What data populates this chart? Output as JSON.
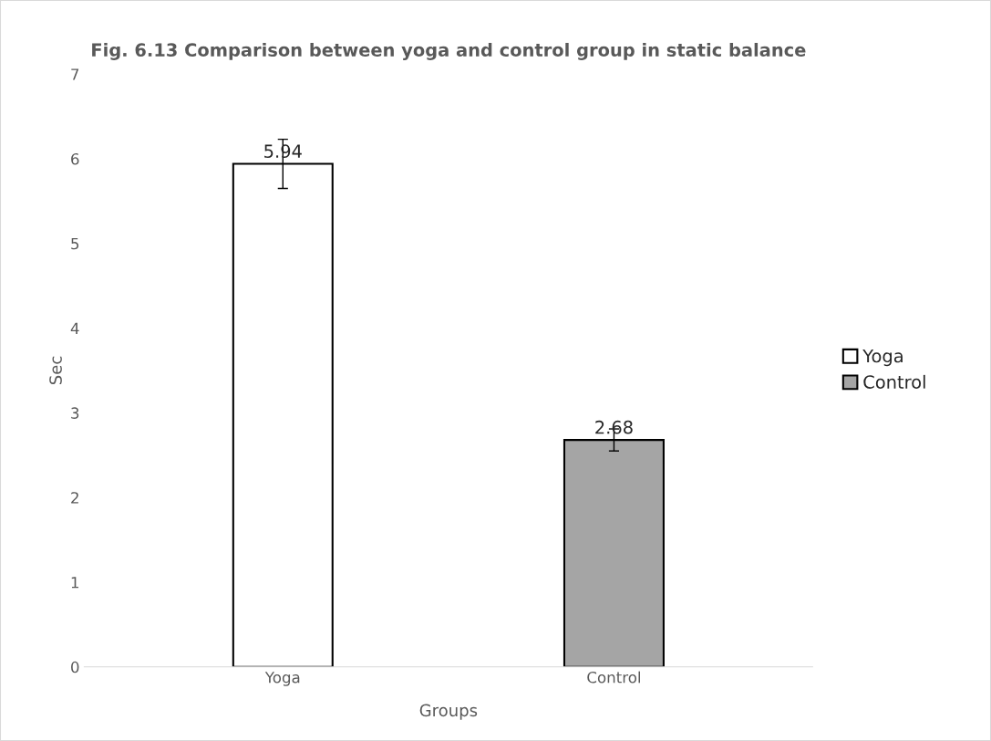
{
  "chart_data": {
    "type": "bar",
    "title": "Fig. 6.13 Comparison between yoga and control group in static balance",
    "xlabel": "Groups",
    "ylabel": "Sec",
    "categories": [
      "Yoga",
      "Control"
    ],
    "series": [
      {
        "name": "Yoga",
        "color": "#ffffff",
        "values": [
          5.94,
          null
        ],
        "errors": [
          0.29,
          null
        ]
      },
      {
        "name": "Control",
        "color": "#a5a5a5",
        "values": [
          null,
          2.68
        ],
        "errors": [
          null,
          0.13
        ]
      }
    ],
    "ylim": [
      0,
      7
    ],
    "yticks": [
      0,
      1,
      2,
      3,
      4,
      5,
      6,
      7
    ],
    "grid": false,
    "legend": "right",
    "data_labels": true
  }
}
